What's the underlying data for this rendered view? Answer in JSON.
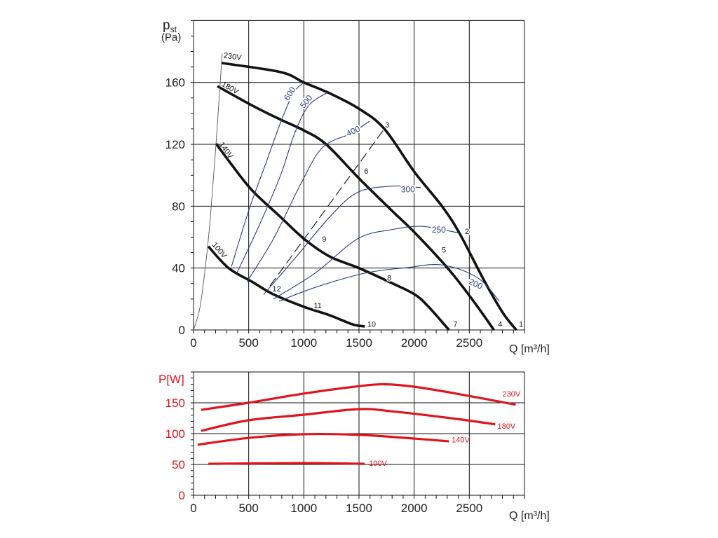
{
  "chart_data": [
    {
      "type": "line",
      "title": "",
      "ylabel_main": "p",
      "ylabel_sub": "st",
      "ylabel_unit": "(Pa)",
      "xlabel": "Q [m³/h]",
      "xlim": [
        0,
        3000
      ],
      "ylim": [
        0,
        200
      ],
      "xticks": [
        0,
        500,
        1000,
        1500,
        2000,
        2500
      ],
      "yticks": [
        0,
        40,
        80,
        120,
        160
      ],
      "grid": true,
      "series": [
        {
          "name": "230V",
          "style": "bold",
          "x": [
            254,
            789,
            1000,
            1234,
            1500,
            1730,
            2004,
            2252,
            2411,
            2634,
            2805,
            2926
          ],
          "y": [
            172.6,
            166.7,
            160,
            153,
            143,
            130,
            102,
            80,
            62.5,
            32,
            11,
            0
          ]
        },
        {
          "name": "180V",
          "style": "bold",
          "x": [
            216,
            534,
            789,
            1000,
            1202,
            1500,
            1807,
            2004,
            2315,
            2538,
            2723
          ],
          "y": [
            157.6,
            145,
            136,
            129,
            120,
            98,
            76.5,
            63,
            39,
            18.6,
            0
          ]
        },
        {
          "name": "140V",
          "style": "bold",
          "x": [
            204,
            344,
            534,
            789,
            1000,
            1234,
            1500,
            1807,
            2004,
            2125,
            2316
          ],
          "y": [
            120.5,
            107,
            90,
            73,
            59,
            47.5,
            40,
            30,
            23,
            15.4,
            0
          ]
        },
        {
          "name": "100V",
          "style": "bold",
          "x": [
            134,
            318,
            534,
            725,
            1000,
            1234,
            1425,
            1500,
            1552
          ],
          "y": [
            54,
            40,
            31,
            23,
            15,
            9.5,
            4,
            2.7,
            2.3
          ]
        },
        {
          "name": "system",
          "style": "thin",
          "x": [
            0,
            57,
            108,
            153,
            204,
            254,
            258
          ],
          "y": [
            0,
            14,
            41,
            73,
            120.5,
            172.6,
            178
          ]
        },
        {
          "name": "600",
          "style": "blue",
          "x": [
            344,
            502,
            662,
            789,
            903,
            1000
          ],
          "y": [
            41,
            77.5,
            109,
            134,
            153,
            160
          ]
        },
        {
          "name": "500",
          "style": "blue",
          "x": [
            394,
            598,
            789,
            916,
            1043,
            1215
          ],
          "y": [
            37,
            68,
            100,
            127,
            145,
            153.5
          ]
        },
        {
          "name": "400",
          "style": "blue",
          "x": [
            483,
            725,
            980,
            1170,
            1425,
            1596
          ],
          "y": [
            31,
            59,
            95.5,
            118,
            127,
            135
          ]
        },
        {
          "name": "300",
          "style": "blue",
          "x": [
            636,
            916,
            1234,
            1489,
            1807,
            2061
          ],
          "y": [
            23,
            46,
            73,
            89,
            93,
            92
          ]
        },
        {
          "name": "250",
          "style": "blue",
          "x": [
            725,
            1107,
            1489,
            1807,
            2061,
            2316,
            2411
          ],
          "y": [
            20,
            37,
            59,
            65,
            67,
            64,
            62.5
          ]
        },
        {
          "name": "200",
          "style": "blue",
          "x": [
            776,
            1107,
            1552,
            1934,
            2252,
            2570,
            2773
          ],
          "y": [
            18.6,
            27.6,
            36.7,
            40.3,
            42,
            34,
            18.6
          ]
        },
        {
          "name": "dashed",
          "style": "dashed",
          "x": [
            693,
            1724
          ],
          "y": [
            28.5,
            129.5
          ]
        }
      ],
      "curve_labels": [
        {
          "text": "230V",
          "x": 270,
          "y": 176,
          "rot": 8,
          "color": "black"
        },
        {
          "text": "180V",
          "x": 250,
          "y": 158,
          "rot": 30,
          "color": "black"
        },
        {
          "text": "140V",
          "x": 230,
          "y": 120,
          "rot": 55,
          "color": "black"
        },
        {
          "text": "100V",
          "x": 165,
          "y": 55,
          "rot": 50,
          "color": "black"
        },
        {
          "text": "600",
          "x": 860,
          "y": 148,
          "rot": -58,
          "color": "blue"
        },
        {
          "text": "500",
          "x": 1000,
          "y": 143,
          "rot": -50,
          "color": "blue"
        },
        {
          "text": "400",
          "x": 1400,
          "y": 125,
          "rot": -25,
          "color": "blue"
        },
        {
          "text": "300",
          "x": 1880,
          "y": 89,
          "rot": 0,
          "color": "blue"
        },
        {
          "text": "250",
          "x": 2160,
          "y": 63,
          "rot": 0,
          "color": "blue"
        },
        {
          "text": "200",
          "x": 2490,
          "y": 30,
          "rot": 25,
          "color": "blue"
        }
      ],
      "point_labels": [
        {
          "text": "1",
          "x": 2950,
          "y": 2
        },
        {
          "text": "2",
          "x": 2460,
          "y": 62
        },
        {
          "text": "3",
          "x": 1737,
          "y": 131
        },
        {
          "text": "4",
          "x": 2760,
          "y": 2
        },
        {
          "text": "5",
          "x": 2250,
          "y": 50
        },
        {
          "text": "6",
          "x": 1546,
          "y": 101
        },
        {
          "text": "7",
          "x": 2354,
          "y": 2
        },
        {
          "text": "8",
          "x": 1755,
          "y": 32
        },
        {
          "text": "9",
          "x": 1165,
          "y": 57
        },
        {
          "text": "10",
          "x": 1575,
          "y": 2
        },
        {
          "text": "11",
          "x": 1090,
          "y": 14
        },
        {
          "text": "12",
          "x": 715,
          "y": 25
        }
      ]
    },
    {
      "type": "line",
      "ylabel": "P[W]",
      "xlabel": "Q [m³/h]",
      "xlim": [
        0,
        3000
      ],
      "ylim": [
        0,
        200
      ],
      "xticks": [
        0,
        500,
        1000,
        1500,
        2000,
        2500
      ],
      "yticks": [
        0,
        50,
        100,
        150
      ],
      "grid": true,
      "series": [
        {
          "name": "230V",
          "x": [
            70,
            496,
            1000,
            1500,
            1743,
            2004,
            2379,
            2920
          ],
          "y": [
            138.6,
            150,
            165,
            177,
            180,
            176,
            165,
            147
          ]
        },
        {
          "name": "180V",
          "x": [
            70,
            496,
            1000,
            1500,
            1807,
            2379,
            2735
          ],
          "y": [
            104.5,
            121.6,
            130.7,
            139.8,
            136,
            124,
            115
          ]
        },
        {
          "name": "140V",
          "x": [
            38,
            496,
            1000,
            1500,
            2000,
            2316
          ],
          "y": [
            82,
            93,
            99,
            98,
            92,
            87.5
          ]
        },
        {
          "name": "100V",
          "x": [
            134,
            1000,
            1552
          ],
          "y": [
            51,
            52.3,
            51
          ]
        }
      ],
      "curve_labels": [
        {
          "text": "230V",
          "x": 2800,
          "y": 160
        },
        {
          "text": "180V",
          "x": 2755,
          "y": 108
        },
        {
          "text": "140V",
          "x": 2340,
          "y": 86
        },
        {
          "text": "100V",
          "x": 1590,
          "y": 48
        }
      ]
    }
  ]
}
